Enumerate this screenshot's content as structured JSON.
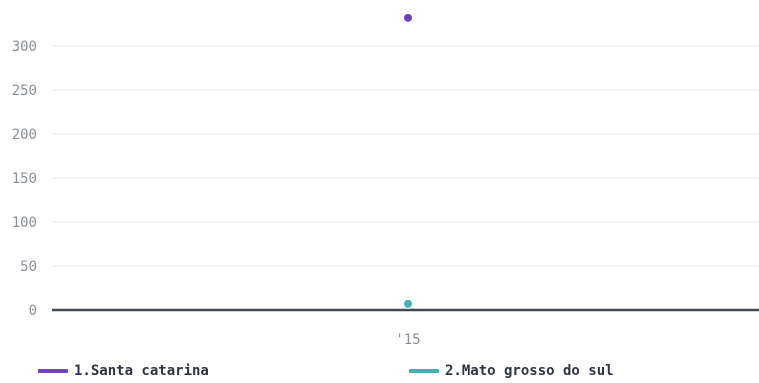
{
  "chart_data": {
    "type": "scatter",
    "categories": [
      "'15"
    ],
    "series": [
      {
        "name": "1.Santa catarina",
        "values": [
          332
        ],
        "color": "#6f42c1"
      },
      {
        "name": "2.Mato grosso do sul",
        "values": [
          7
        ],
        "color": "#3fb3b8"
      }
    ],
    "yticks": [
      0,
      50,
      100,
      150,
      200,
      250,
      300
    ],
    "ylim": [
      0,
      340
    ],
    "grid": true,
    "legend_position": "bottom"
  }
}
